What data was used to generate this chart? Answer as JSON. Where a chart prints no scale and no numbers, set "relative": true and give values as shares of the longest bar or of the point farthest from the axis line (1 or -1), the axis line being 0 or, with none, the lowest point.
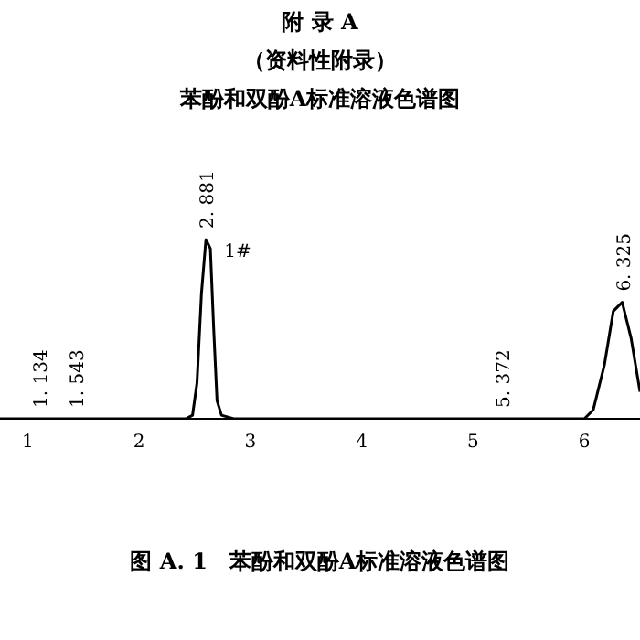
{
  "chart_data": {
    "type": "line",
    "title": "附 录 A",
    "subtitle": "（资料性附录）",
    "relative": true,
    "x": [
      0.75,
      1.0,
      1.5,
      2.0,
      2.42,
      2.48,
      2.52,
      2.56,
      2.6,
      2.64,
      2.67,
      2.7,
      2.74,
      2.85,
      3.0,
      4.0,
      5.0,
      5.5,
      6.0,
      6.08,
      6.18,
      6.26,
      6.34,
      6.42,
      6.5
    ],
    "values": [
      0,
      0,
      0,
      0,
      0,
      0.02,
      0.2,
      0.7,
      1.0,
      0.95,
      0.5,
      0.1,
      0.02,
      0,
      0,
      0,
      0,
      0,
      0,
      0.05,
      0.3,
      0.6,
      0.65,
      0.45,
      0.15
    ],
    "color": "#000000",
    "xlim": [
      0.75,
      6.5
    ],
    "xticks": [
      1,
      2,
      3,
      4,
      5,
      6
    ],
    "grid": false,
    "legend": false,
    "marker": "none",
    "line_style": "solid",
    "annotations": [
      "苯酚和双酚A标准溶液色谱图",
      {
        "text": "1. 134",
        "x": 1.1,
        "y": 0
      },
      {
        "text": "1. 543",
        "x": 1.43,
        "y": 0
      },
      {
        "text": "2. 881",
        "x": 2.6,
        "y": 1.0
      },
      "1#",
      {
        "text": "5. 372",
        "x": 5.26,
        "y": 0
      },
      {
        "text": "6. 325",
        "x": 6.34,
        "y": 0.65
      },
      "图 A. 1　苯酚和双酚A标准溶液色谱图"
    ]
  }
}
